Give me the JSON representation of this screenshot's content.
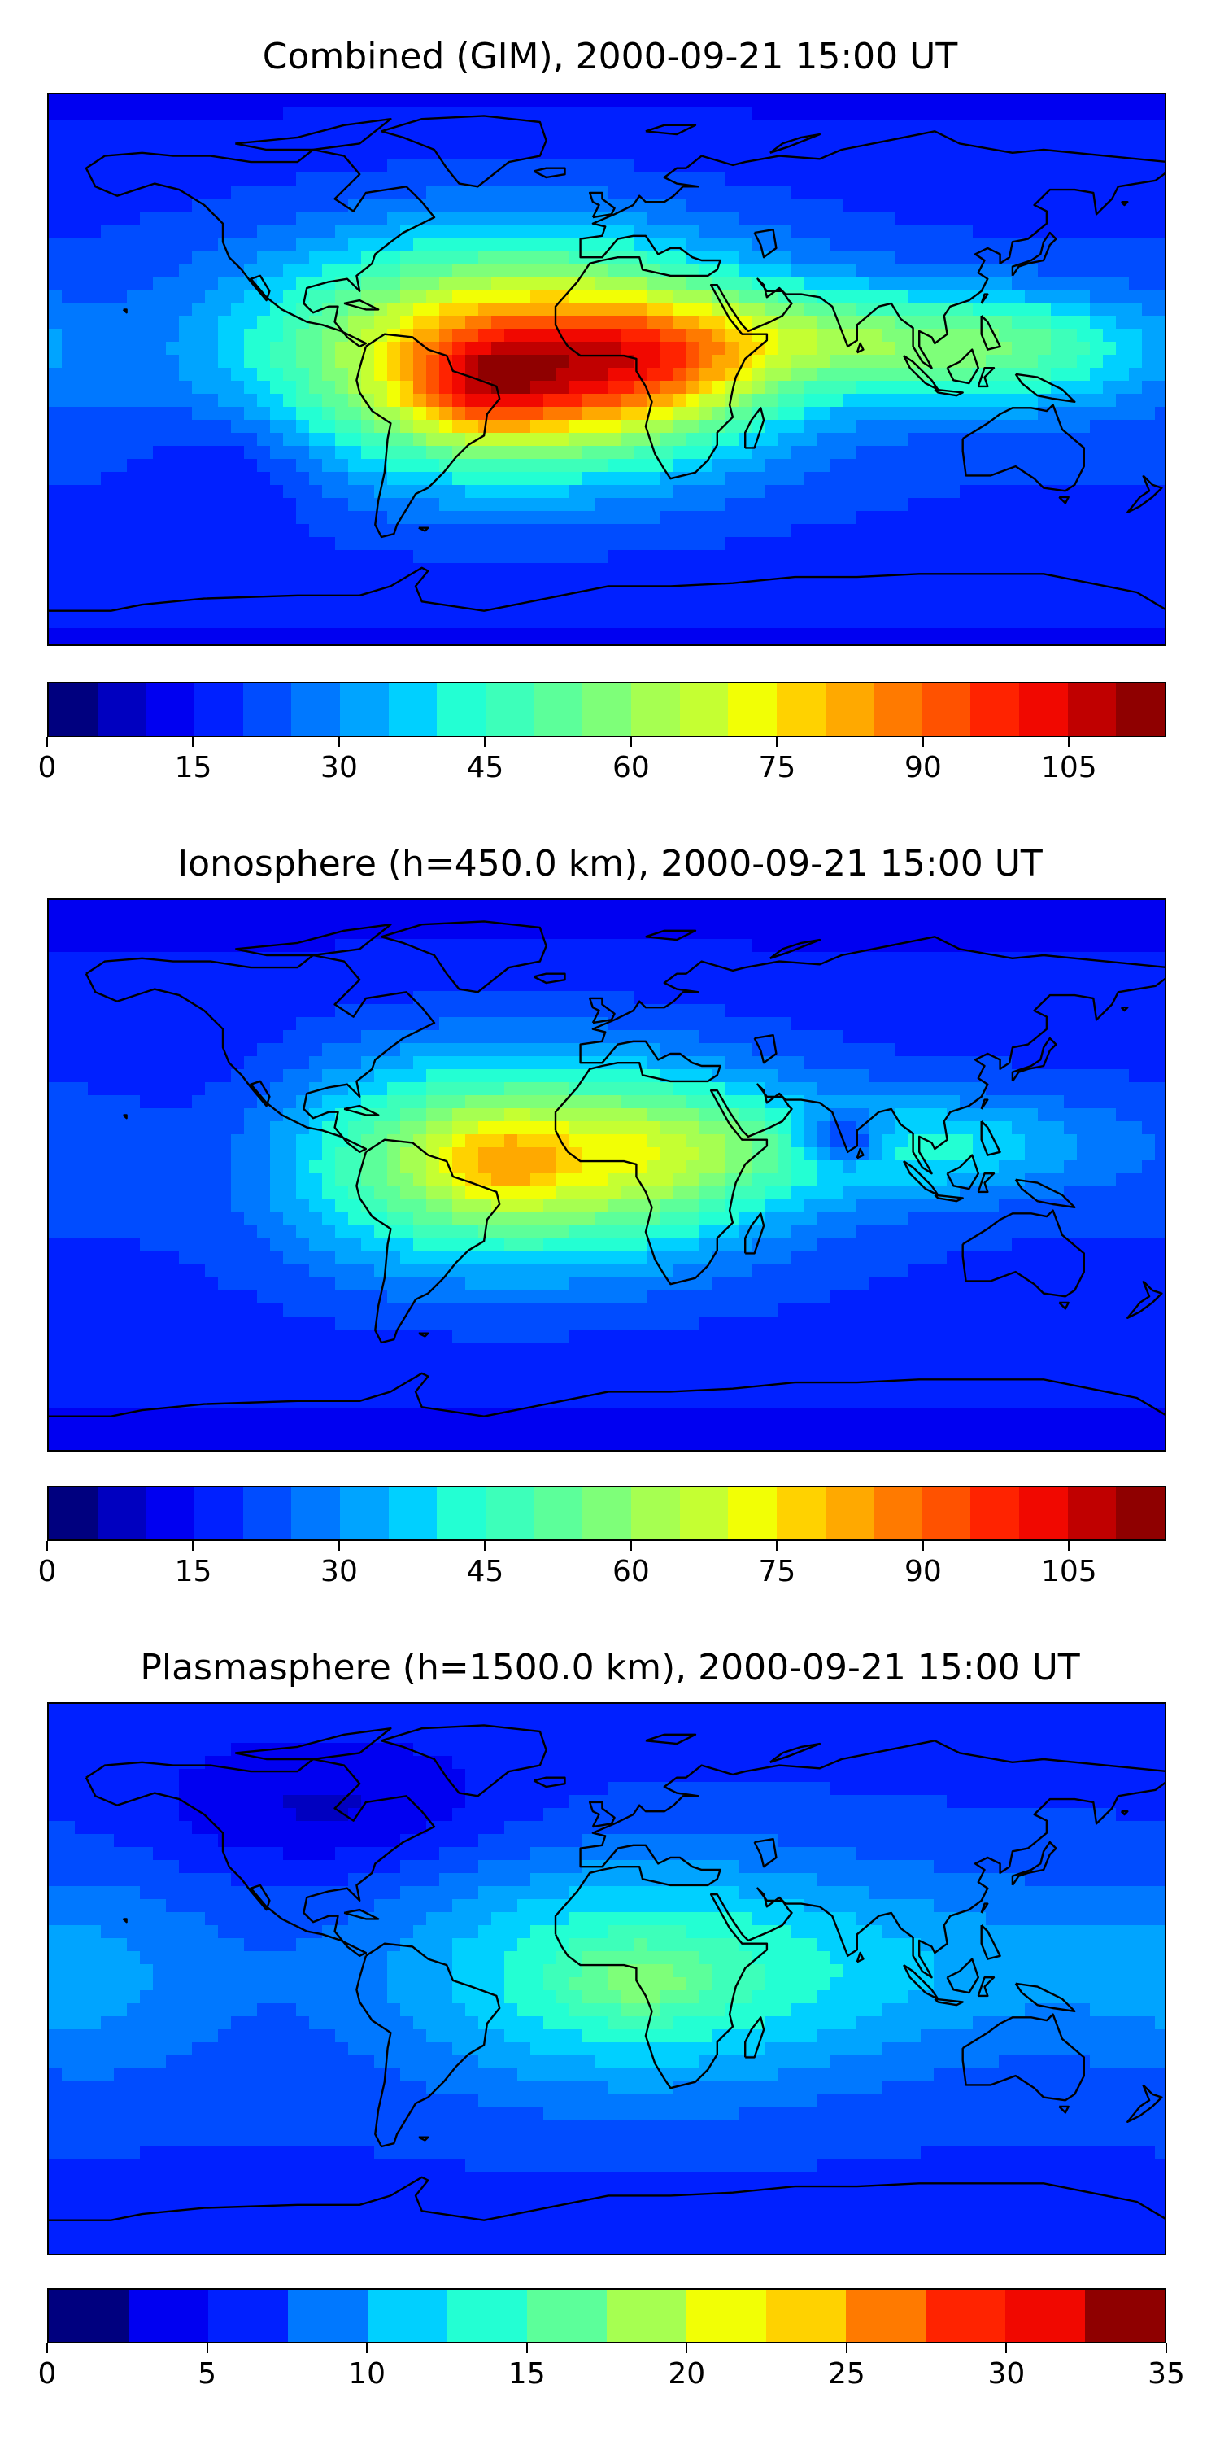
{
  "panels": [
    {
      "title": "Combined (GIM), 2000-09-21 15:00 UT",
      "colorbar": {
        "min": 0,
        "max": 115,
        "step": 5,
        "ticks": [
          "0",
          "15",
          "30",
          "45",
          "60",
          "75",
          "90",
          "105"
        ],
        "tick_values": [
          0,
          15,
          30,
          45,
          60,
          75,
          90,
          105
        ]
      },
      "field": {
        "background_level": 0.18,
        "blobs": [
          {
            "lon": -30,
            "lat": 5,
            "slon": 55,
            "slat": 26,
            "amp": 0.58
          },
          {
            "lon": -38,
            "lat": -5,
            "slon": 18,
            "slat": 12,
            "amp": 0.22
          },
          {
            "lon": 12,
            "lat": 0,
            "slon": 25,
            "slat": 15,
            "amp": 0.2
          },
          {
            "lon": 80,
            "lat": 10,
            "slon": 50,
            "slat": 12,
            "amp": 0.25
          },
          {
            "lon": 135,
            "lat": 5,
            "slon": 30,
            "slat": 14,
            "amp": 0.15
          },
          {
            "lon": -120,
            "lat": -30,
            "slon": 20,
            "slat": 15,
            "amp": -0.08
          }
        ]
      }
    },
    {
      "title": "Ionosphere  (h=450.0 km), 2000-09-21 15:00 UT",
      "colorbar": {
        "min": 0,
        "max": 115,
        "step": 5,
        "ticks": [
          "0",
          "15",
          "30",
          "45",
          "60",
          "75",
          "90",
          "105"
        ],
        "tick_values": [
          0,
          15,
          30,
          45,
          60,
          75,
          90,
          105
        ]
      },
      "field": {
        "background_level": 0.17,
        "blobs": [
          {
            "lon": -30,
            "lat": 5,
            "slon": 55,
            "slat": 24,
            "amp": 0.42
          },
          {
            "lon": -35,
            "lat": 5,
            "slon": 15,
            "slat": 10,
            "amp": 0.14
          },
          {
            "lon": 20,
            "lat": 8,
            "slon": 25,
            "slat": 15,
            "amp": 0.12
          },
          {
            "lon": 100,
            "lat": 10,
            "slon": 45,
            "slat": 12,
            "amp": 0.18
          },
          {
            "lon": 75,
            "lat": 12,
            "slon": 10,
            "slat": 6,
            "amp": -0.22
          },
          {
            "lon": -120,
            "lat": 10,
            "slon": 25,
            "slat": 25,
            "amp": -0.06
          }
        ]
      }
    },
    {
      "title": "Plasmasphere (h=1500.0 km), 2000-09-21 15:00 UT",
      "colorbar": {
        "min": 0,
        "max": 35,
        "step": 2.5,
        "ticks": [
          "0",
          "5",
          "10",
          "15",
          "20",
          "25",
          "30",
          "35"
        ],
        "tick_values": [
          0,
          5,
          10,
          15,
          20,
          25,
          30,
          35
        ]
      },
      "field": {
        "background_level": 0.3,
        "blobs": [
          {
            "lon": 10,
            "lat": 2,
            "slon": 55,
            "slat": 26,
            "amp": 0.38
          },
          {
            "lon": 10,
            "lat": 0,
            "slon": 15,
            "slat": 8,
            "amp": 0.15
          },
          {
            "lon": -165,
            "lat": 0,
            "slon": 30,
            "slat": 25,
            "amp": 0.12
          },
          {
            "lon": 120,
            "lat": 5,
            "slon": 50,
            "slat": 20,
            "amp": 0.12
          },
          {
            "lon": -90,
            "lat": 55,
            "slon": 40,
            "slat": 15,
            "amp": -0.15
          }
        ]
      }
    }
  ],
  "palette": [
    "#00007f",
    "#0000c0",
    "#0000f1",
    "#0020ff",
    "#004cff",
    "#0078ff",
    "#00a4ff",
    "#00d0ff",
    "#23ffd3",
    "#3dffba",
    "#5cff9a",
    "#7eff79",
    "#a6ff51",
    "#c5ff32",
    "#f2ff05",
    "#ffd200",
    "#ffa900",
    "#ff7a00",
    "#ff5200",
    "#ff2300",
    "#f10800",
    "#c00000",
    "#8f0000"
  ]
}
